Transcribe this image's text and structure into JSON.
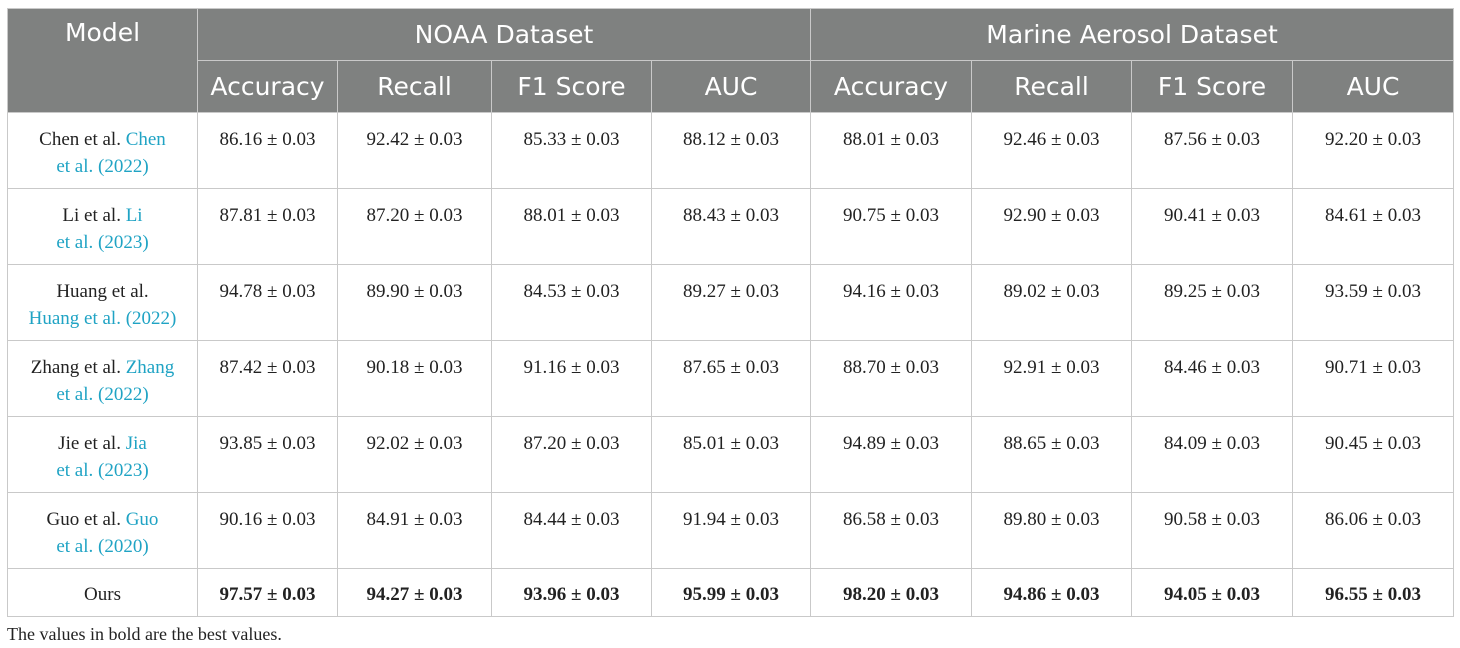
{
  "header": {
    "model": "Model",
    "groups": [
      "NOAA Dataset",
      "Marine Aerosol Dataset"
    ],
    "metrics": [
      "Accuracy",
      "Recall",
      "F1 Score",
      "AUC",
      "Accuracy",
      "Recall",
      "F1 Score",
      "AUC"
    ]
  },
  "rows": [
    {
      "model_a": "Chen et al. ",
      "cite_a": "Chen",
      "cite_b": "et al. (2022)",
      "values": [
        "86.16 ± 0.03",
        "92.42 ± 0.03",
        "85.33 ± 0.03",
        "88.12 ± 0.03",
        "88.01 ± 0.03",
        "92.46 ± 0.03",
        "87.56 ± 0.03",
        "92.20 ± 0.03"
      ]
    },
    {
      "model_a": "Li et al. ",
      "cite_a": "Li",
      "cite_b": "et al. (2023)",
      "values": [
        "87.81 ± 0.03",
        "87.20 ± 0.03",
        "88.01 ± 0.03",
        "88.43 ± 0.03",
        "90.75 ± 0.03",
        "92.90 ± 0.03",
        "90.41 ± 0.03",
        "84.61 ± 0.03"
      ]
    },
    {
      "model_a": "Huang et al.",
      "cite_a": "",
      "cite_b": "Huang et al. (2022)",
      "values": [
        "94.78 ± 0.03",
        "89.90 ± 0.03",
        "84.53 ± 0.03",
        "89.27 ± 0.03",
        "94.16 ± 0.03",
        "89.02 ± 0.03",
        "89.25 ± 0.03",
        "93.59 ± 0.03"
      ]
    },
    {
      "model_a": "Zhang et al. ",
      "cite_a": "Zhang",
      "cite_b": "et al. (2022)",
      "values": [
        "87.42 ± 0.03",
        "90.18 ± 0.03",
        "91.16 ± 0.03",
        "87.65 ± 0.03",
        "88.70 ± 0.03",
        "92.91 ± 0.03",
        "84.46 ± 0.03",
        "90.71 ± 0.03"
      ]
    },
    {
      "model_a": "Jie et al. ",
      "cite_a": "Jia",
      "cite_b": "et al. (2023)",
      "values": [
        "93.85 ± 0.03",
        "92.02 ± 0.03",
        "87.20 ± 0.03",
        "85.01 ± 0.03",
        "94.89 ± 0.03",
        "88.65 ± 0.03",
        "84.09 ± 0.03",
        "90.45 ± 0.03"
      ]
    },
    {
      "model_a": "Guo et al. ",
      "cite_a": "Guo",
      "cite_b": "et al. (2020)",
      "values": [
        "90.16 ± 0.03",
        "84.91 ± 0.03",
        "84.44 ± 0.03",
        "91.94 ± 0.03",
        "86.58 ± 0.03",
        "89.80 ± 0.03",
        "90.58 ± 0.03",
        "86.06 ± 0.03"
      ]
    }
  ],
  "ours": {
    "model": "Ours",
    "values": [
      "97.57 ± 0.03",
      "94.27 ± 0.03",
      "93.96 ± 0.03",
      "95.99 ± 0.03",
      "98.20 ± 0.03",
      "94.86 ± 0.03",
      "94.05 ± 0.03",
      "96.55 ± 0.03"
    ]
  },
  "footnote": "The values in bold are the best values."
}
